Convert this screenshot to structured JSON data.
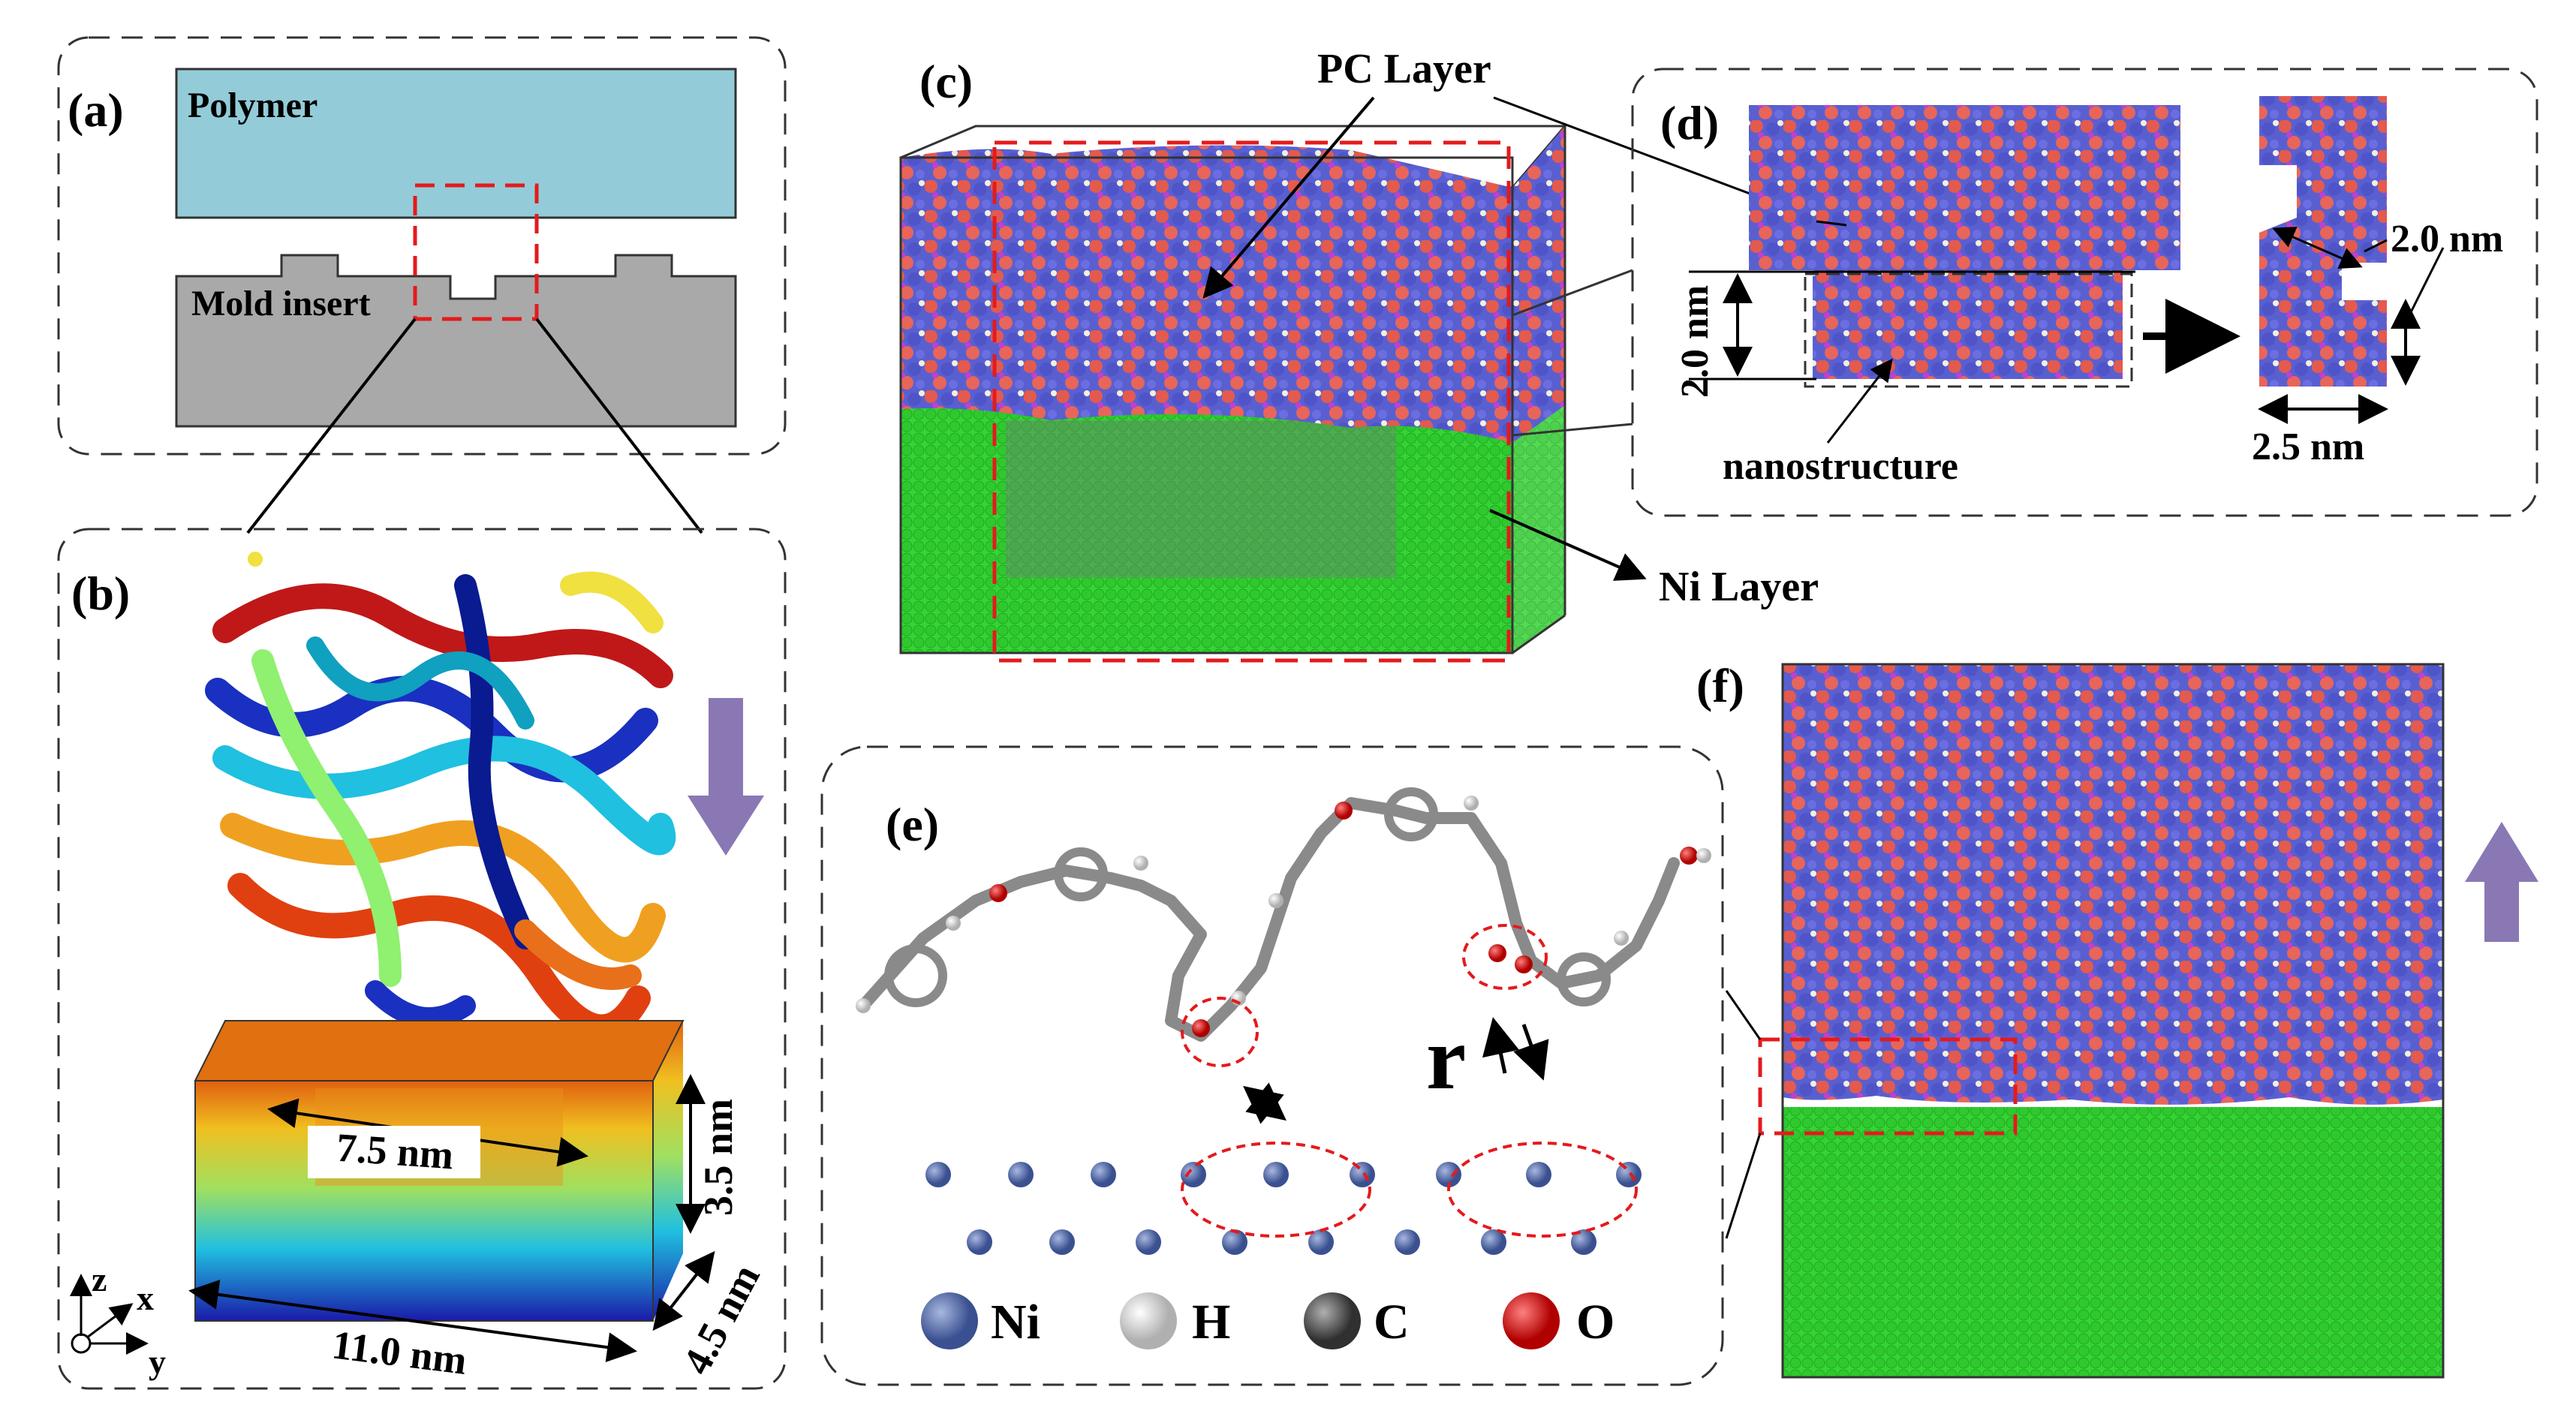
{
  "panels": {
    "a": {
      "label": "(a)",
      "polymer": "Polymer",
      "mold": "Mold insert"
    },
    "b": {
      "label": "(b)",
      "dim_inner": "7.5 nm",
      "dim_height": "3.5 nm",
      "dim_depth": "4.5 nm",
      "dim_length": "11.0 nm",
      "axes": {
        "z": "z",
        "x": "x",
        "y": "y"
      }
    },
    "c": {
      "label": "(c)",
      "pc_layer": "PC Layer",
      "ni_layer": "Ni Layer"
    },
    "d": {
      "label": "(d)",
      "dim_left": "2.0 nm",
      "dim_right": "2.0 nm",
      "dim_width": "2.5 nm",
      "nanostructure": "nanostructure"
    },
    "e": {
      "label": "(e)",
      "r_symbol": "r",
      "legend": [
        {
          "symbol": "Ni",
          "color": "#5a72ad"
        },
        {
          "symbol": "H",
          "color": "#f2f2f2"
        },
        {
          "symbol": "C",
          "color": "#666666"
        },
        {
          "symbol": "O",
          "color": "#e01414"
        }
      ]
    },
    "f": {
      "label": "(f)"
    }
  },
  "colors": {
    "polymer": "#93ccd8",
    "mold": "#a9a9a9",
    "ni_green": "#2fd42f",
    "pc_blue": "#5a5fd0",
    "pc_red": "#e35a4f",
    "dash_red": "#e41a1c",
    "arrow_purple": "#8a78b4"
  }
}
